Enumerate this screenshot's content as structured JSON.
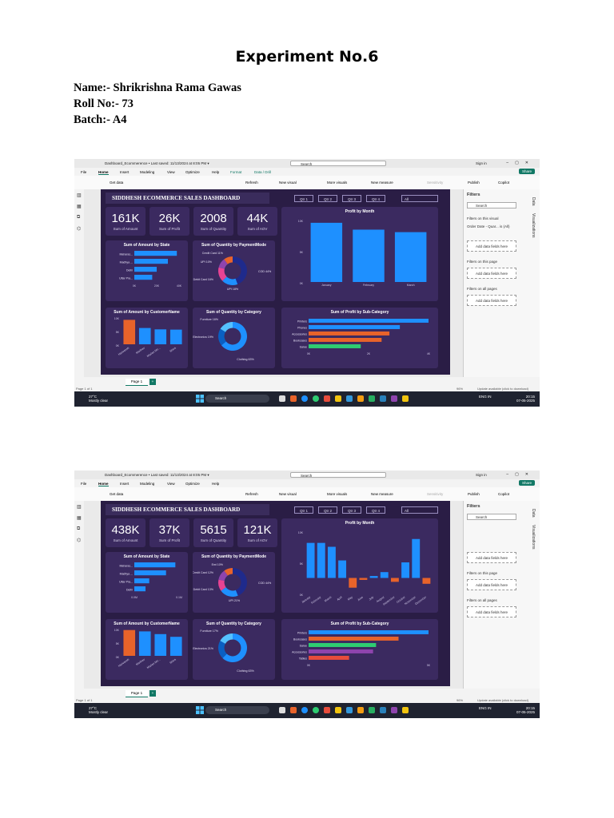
{
  "doc": {
    "title": "Experiment No.6",
    "name_line": "Name:- Shrikrishna Rama Gawas",
    "roll_line": "Roll No:- 73",
    "batch_line": "Batch:- A4"
  },
  "screenshots": [
    {
      "titlebar": {
        "file": "Dashboard_Ecommerence • Last saved: 11/13/2024 at 8:05 PM ▾",
        "search": "Search",
        "signin": "Sign in"
      },
      "menu": {
        "file": "File",
        "home": "Home",
        "insert": "Insert",
        "modeling": "Modeling",
        "view": "View",
        "optimize": "Optimize",
        "help": "Help",
        "format": "Format",
        "data_drill": "Data / Drill",
        "share": "Share"
      },
      "ribbon": {
        "get_data": "Get data",
        "refresh": "Refresh",
        "new_visual": "New visual",
        "more_visuals": "More visuals",
        "new_measure": "New measure",
        "sensitivity": "Sensitivity",
        "publish": "Publish",
        "copilot": "Copilot"
      },
      "dashboard_title": "SIDDHESH ECOMMERCE SALES DASHBOARD",
      "quarters": [
        "Qtr 1",
        "Qtr 2",
        "Qtr 3",
        "Qtr 4"
      ],
      "filter_all": "All",
      "kpis": [
        {
          "value": "161K",
          "label": "Sum of Amount"
        },
        {
          "value": "26K",
          "label": "Sum of Profit"
        },
        {
          "value": "2008",
          "label": "Sum of Quantity"
        },
        {
          "value": "44K",
          "label": "Sum of AOV"
        }
      ],
      "state_chart": {
        "title": "Sum of Amount by State",
        "labels": [
          "Maharas...",
          "Madhya ...",
          "Delhi",
          "Uttar Pra..."
        ],
        "ticks": [
          "0K",
          "20K",
          "40K"
        ]
      },
      "payment_chart": {
        "title": "Sum of Quantity by PaymentMode",
        "labels": [
          "Credit Card 11%",
          "UPI 10%",
          "Debit Card 16%",
          "UPI 18%",
          "COD 44%"
        ]
      },
      "profit_month_chart": {
        "title": "Profit by Month",
        "yticks": [
          "10K",
          "5K",
          "0K"
        ],
        "categories": [
          "January",
          "February",
          "March"
        ]
      },
      "customer_chart": {
        "title": "Sum of Amount by CustomerName",
        "yticks": [
          "10K",
          "5K",
          "0K"
        ],
        "labels": [
          "Harivansh",
          "Madhav",
          "Madan Mo...",
          "Shiva"
        ]
      },
      "category_chart": {
        "title": "Sum of Quantity by Category",
        "labels": [
          "Furniture 16%",
          "Electronics 19%",
          "Clothing 63%"
        ]
      },
      "subcat_chart": {
        "title": "Sum of Profit by Sub-Category",
        "labels": [
          "Printers",
          "Phones",
          "Accessories",
          "Bookcases",
          "Saree"
        ],
        "xticks": [
          "0K",
          "2K",
          "4K"
        ]
      },
      "filters": {
        "header": "Filters",
        "search": "Search",
        "on_visual": "Filters on this visual",
        "visual_field": "Order Date - Quar... is (All)",
        "add_fields": "Add data fields here",
        "on_page": "Filters on this page",
        "on_all": "Filters on all pages",
        "data_tab": "Data",
        "viz_tab": "Visualizations"
      },
      "page_tab": "Page 1",
      "status": {
        "page": "Page 1 of 1",
        "zoom": "96%",
        "update": "Update available (click to download)"
      },
      "taskbar": {
        "temp": "27°C",
        "weather": "Mostly clear",
        "search": "Search",
        "lang": "ENG IN",
        "time": "20:15",
        "date": "07-05-2025"
      }
    },
    {
      "titlebar": {
        "file": "Dashboard_Ecommerence • Last saved: 11/13/2024 at 8:05 PM ▾",
        "search": "Search",
        "signin": "Sign in"
      },
      "menu": {
        "file": "File",
        "home": "Home",
        "insert": "Insert",
        "modeling": "Modeling",
        "view": "View",
        "optimize": "Optimize",
        "help": "Help",
        "format": "",
        "data_drill": "",
        "share": "Share"
      },
      "ribbon": {
        "get_data": "Get data",
        "refresh": "Refresh",
        "new_visual": "New visual",
        "more_visuals": "More visuals",
        "new_measure": "New measure",
        "sensitivity": "Sensitivity",
        "publish": "Publish",
        "copilot": "Copilot"
      },
      "dashboard_title": "SIDDHESH ECOMMERCE SALES DASHBOARD",
      "quarters": [
        "Qtr 1",
        "Qtr 2",
        "Qtr 3",
        "Qtr 4"
      ],
      "filter_all": "All",
      "kpis": [
        {
          "value": "438K",
          "label": "Sum of Amount"
        },
        {
          "value": "37K",
          "label": "Sum of Profit"
        },
        {
          "value": "5615",
          "label": "Sum of Quantity"
        },
        {
          "value": "121K",
          "label": "Sum of AOV"
        }
      ],
      "state_chart": {
        "title": "Sum of Amount by State",
        "labels": [
          "Maharas...",
          "Madhya ...",
          "Uttar Pra...",
          "Delhi"
        ],
        "ticks": [
          "0.0M",
          "0.1M"
        ]
      },
      "payment_chart": {
        "title": "Sum of Quantity by PaymentMode",
        "labels": [
          "Emi 10%",
          "Credit Card 12%",
          "Debit Card 13%",
          "UPI 21%",
          "COD 44%"
        ]
      },
      "profit_month_chart": {
        "title": "Profit by Month",
        "yticks": [
          "10K",
          "5K",
          "0K"
        ],
        "categories": [
          "January",
          "February",
          "March",
          "April",
          "May",
          "June",
          "July",
          "August",
          "September",
          "October",
          "November",
          "December"
        ]
      },
      "customer_chart": {
        "title": "Sum of Amount by CustomerName",
        "yticks": [
          "10K",
          "5K",
          "0K"
        ],
        "labels": [
          "Harivansh",
          "Madhav",
          "Madan Mo...",
          "Shiva"
        ]
      },
      "category_chart": {
        "title": "Sum of Quantity by Category",
        "labels": [
          "Furniture 17%",
          "Electronics 21%",
          "Clothing 63%"
        ]
      },
      "subcat_chart": {
        "title": "Sum of Profit by Sub-Category",
        "labels": [
          "Printers",
          "Bookcases",
          "Saree",
          "Accessories",
          "Tables"
        ],
        "xticks": [
          "0K",
          "5K"
        ]
      },
      "filters": {
        "header": "Filters",
        "search": "Search",
        "on_visual": "",
        "visual_field": "",
        "add_fields": "Add data fields here",
        "on_page": "Filters on this page",
        "on_all": "Filters on all pages",
        "data_tab": "Data",
        "viz_tab": "Visualizations"
      },
      "page_tab": "Page 1",
      "status": {
        "page": "Page 1 of 1",
        "zoom": "96%",
        "update": "Update available (click to download)"
      },
      "taskbar": {
        "temp": "27°C",
        "weather": "Mostly clear",
        "search": "Search",
        "lang": "ENG IN",
        "time": "20:15",
        "date": "07-05-2025"
      }
    }
  ],
  "chart_data": [
    {
      "type": "bar",
      "title": "Profit by Month",
      "categories": [
        "January",
        "February",
        "March"
      ],
      "values": [
        9500,
        8400,
        8000
      ],
      "ylim": [
        0,
        10000
      ]
    },
    {
      "type": "bar",
      "title": "Sum of Amount by CustomerName",
      "categories": [
        "Harivansh",
        "Madhav",
        "Madan Mo...",
        "Shiva"
      ],
      "values": [
        9000,
        6000,
        5500,
        5400
      ],
      "ylim": [
        0,
        10000
      ]
    },
    {
      "type": "bar",
      "title": "Sum of Amount by State",
      "categories": [
        "Maharas...",
        "Madhya ...",
        "Delhi",
        "Uttar Pra..."
      ],
      "values": [
        38000,
        30000,
        20000,
        16000
      ],
      "xlim": [
        0,
        40000
      ]
    },
    {
      "type": "bar",
      "title": "Sum of Profit by Sub-Category",
      "categories": [
        "Printers",
        "Phones",
        "Accessories",
        "Bookcases",
        "Saree"
      ],
      "values": [
        4600,
        3500,
        3100,
        2800,
        2000
      ],
      "xlim": [
        0,
        4600
      ]
    },
    {
      "type": "pie",
      "title": "Sum of Quantity by PaymentMode",
      "categories": [
        "COD",
        "UPI",
        "Debit Card",
        "Credit Card",
        "UPI"
      ],
      "values": [
        44,
        18,
        16,
        11,
        10
      ]
    },
    {
      "type": "pie",
      "title": "Sum of Quantity by Category",
      "categories": [
        "Clothing",
        "Electronics",
        "Furniture"
      ],
      "values": [
        63,
        19,
        16
      ]
    },
    {
      "type": "bar",
      "title": "Profit by Month",
      "categories": [
        "January",
        "February",
        "March",
        "April",
        "May",
        "June",
        "July",
        "August",
        "September",
        "October",
        "November",
        "December"
      ],
      "values": [
        9000,
        9000,
        8000,
        4500,
        -2500,
        -500,
        500,
        1500,
        -1000,
        4000,
        10000,
        -1500
      ],
      "ylim": [
        -4000,
        12000
      ]
    },
    {
      "type": "bar",
      "title": "Sum of Amount by CustomerName",
      "categories": [
        "Harivansh",
        "Madhav",
        "Madan Mo...",
        "Shiva"
      ],
      "values": [
        9500,
        9000,
        8000,
        7000
      ],
      "ylim": [
        0,
        10000
      ]
    },
    {
      "type": "bar",
      "title": "Sum of Amount by State",
      "categories": [
        "Maharas...",
        "Madhya ...",
        "Uttar Pra...",
        "Delhi"
      ],
      "values": [
        0.11,
        0.085,
        0.04,
        0.03
      ],
      "xlim": [
        0,
        0.12
      ]
    },
    {
      "type": "bar",
      "title": "Sum of Profit by Sub-Category",
      "categories": [
        "Printers",
        "Bookcases",
        "Saree",
        "Accessories",
        "Tables"
      ],
      "values": [
        8000,
        6000,
        4500,
        4300,
        2700
      ],
      "xlim": [
        0,
        8000
      ]
    },
    {
      "type": "pie",
      "title": "Sum of Quantity by PaymentMode",
      "categories": [
        "COD",
        "UPI",
        "Debit Card",
        "Credit Card",
        "Emi"
      ],
      "values": [
        44,
        21,
        13,
        12,
        10
      ]
    },
    {
      "type": "pie",
      "title": "Sum of Quantity by Category",
      "categories": [
        "Clothing",
        "Electronics",
        "Furniture"
      ],
      "values": [
        63,
        21,
        17
      ]
    }
  ],
  "colors": {
    "dashboard_bg": "#2a1d45",
    "card": "#3b2a60",
    "blue": "#1e90ff",
    "orange": "#e8632a",
    "green": "#2ecc71",
    "red": "#e74c3c",
    "pink": "#e84393",
    "purple": "#8e44ad",
    "navy": "#1f2a8c",
    "accent": "#117865"
  }
}
